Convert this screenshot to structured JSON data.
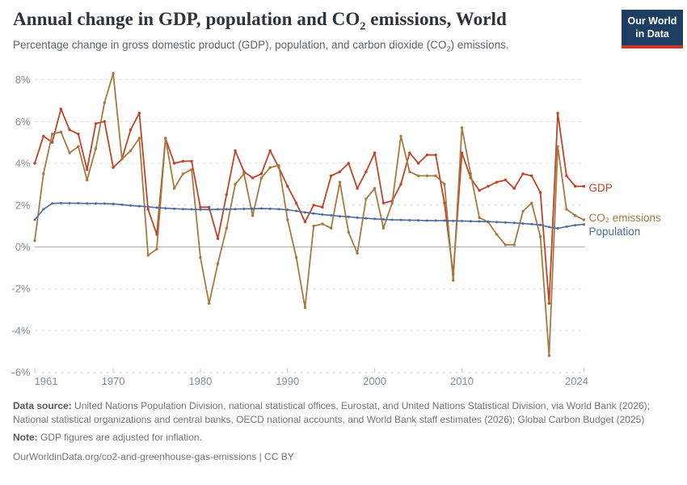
{
  "header": {
    "title": {
      "pre": "Annual change in GDP, population and CO",
      "sub": "2",
      "post": " emissions, World"
    },
    "subtitle": {
      "pre": "Percentage change in gross domestic product (GDP), population, and carbon dioxide (CO",
      "sub": "2",
      "post": ") emissions."
    },
    "logo": {
      "line1": "Our World",
      "line2": "in Data"
    }
  },
  "chart_data": {
    "type": "line",
    "title": "Annual change in GDP, population and CO₂ emissions, World",
    "x": [
      1961,
      1962,
      1963,
      1964,
      1965,
      1966,
      1967,
      1968,
      1969,
      1970,
      1971,
      1972,
      1973,
      1974,
      1975,
      1976,
      1977,
      1978,
      1979,
      1980,
      1981,
      1982,
      1983,
      1984,
      1985,
      1986,
      1987,
      1988,
      1989,
      1990,
      1991,
      1992,
      1993,
      1994,
      1995,
      1996,
      1997,
      1998,
      1999,
      2000,
      2001,
      2002,
      2003,
      2004,
      2005,
      2006,
      2007,
      2008,
      2009,
      2010,
      2011,
      2012,
      2013,
      2014,
      2015,
      2016,
      2017,
      2018,
      2019,
      2020,
      2021,
      2022,
      2023,
      2024
    ],
    "series": [
      {
        "name": "GDP",
        "label": "GDP",
        "color": "#c04327",
        "values": [
          4.0,
          5.3,
          5.0,
          6.6,
          5.6,
          5.4,
          3.7,
          5.9,
          6.0,
          3.8,
          4.2,
          5.6,
          6.4,
          1.8,
          0.6,
          5.2,
          4.0,
          4.1,
          4.1,
          1.9,
          1.9,
          0.4,
          2.5,
          4.6,
          3.6,
          3.3,
          3.5,
          4.6,
          3.8,
          2.9,
          2.1,
          1.2,
          2.0,
          1.9,
          3.4,
          3.6,
          4.0,
          2.8,
          3.6,
          4.5,
          2.1,
          2.2,
          3.0,
          4.5,
          4.0,
          4.4,
          4.4,
          2.1,
          -1.3,
          4.5,
          3.3,
          2.7,
          2.9,
          3.1,
          3.2,
          2.8,
          3.5,
          3.4,
          2.6,
          -2.7,
          6.4,
          3.4,
          2.9,
          2.9
        ]
      },
      {
        "name": "CO2 emissions",
        "label": "CO₂ emissions",
        "color": "#a5793f",
        "values": [
          0.3,
          3.5,
          5.4,
          5.5,
          4.5,
          4.8,
          3.2,
          4.7,
          6.9,
          8.3,
          4.2,
          4.6,
          5.2,
          -0.4,
          -0.1,
          5.2,
          2.8,
          3.5,
          3.7,
          -0.5,
          -2.7,
          -0.8,
          0.9,
          3.0,
          3.5,
          1.5,
          3.3,
          3.8,
          3.9,
          1.3,
          -0.5,
          -2.9,
          1.0,
          1.1,
          0.9,
          3.1,
          0.7,
          -0.3,
          2.3,
          2.8,
          0.9,
          2.1,
          5.3,
          3.6,
          3.4,
          3.4,
          3.4,
          3.0,
          -1.6,
          5.7,
          3.5,
          1.4,
          1.2,
          0.6,
          0.1,
          0.1,
          1.7,
          2.1,
          0.5,
          -5.2,
          4.8,
          1.8,
          1.5,
          1.3
        ]
      },
      {
        "name": "Population",
        "label": "Population",
        "color": "#4c6a9c",
        "values": [
          1.3,
          1.8,
          2.08,
          2.1,
          2.09,
          2.09,
          2.08,
          2.08,
          2.07,
          2.06,
          2.02,
          1.98,
          1.95,
          1.92,
          1.88,
          1.85,
          1.83,
          1.81,
          1.8,
          1.79,
          1.79,
          1.8,
          1.8,
          1.81,
          1.82,
          1.83,
          1.84,
          1.83,
          1.81,
          1.78,
          1.72,
          1.65,
          1.6,
          1.55,
          1.51,
          1.47,
          1.44,
          1.4,
          1.37,
          1.34,
          1.32,
          1.3,
          1.29,
          1.28,
          1.27,
          1.26,
          1.26,
          1.26,
          1.25,
          1.24,
          1.23,
          1.22,
          1.21,
          1.19,
          1.17,
          1.15,
          1.12,
          1.09,
          1.05,
          0.95,
          0.89,
          0.97,
          1.04,
          1.08
        ]
      }
    ],
    "ylabel": "",
    "xlabel": "",
    "ylim": [
      -6,
      8
    ],
    "xlim": [
      1961,
      2024
    ],
    "yticks": [
      {
        "value": 8,
        "label": "8%"
      },
      {
        "value": 6,
        "label": "6%"
      },
      {
        "value": 4,
        "label": "4%"
      },
      {
        "value": 2,
        "label": "2%"
      },
      {
        "value": 0,
        "label": "0%"
      },
      {
        "value": -2,
        "label": "-2%"
      },
      {
        "value": -4,
        "label": "-4%"
      },
      {
        "value": -6,
        "label": "-6%"
      }
    ],
    "xticks": [
      1961,
      1970,
      1980,
      1990,
      2000,
      2010,
      2024
    ],
    "grid": "horizontal-dashed, solid zero line",
    "legend_position": "right of line ends",
    "colors": {
      "grid": "#dcdcdc",
      "zero_line": "#a8a8a8",
      "tick_text": "#878e95"
    }
  },
  "footer": {
    "datasource_label": "Data source:",
    "datasource_text": "United Nations Population Division, national statistical offices, Eurostat, and United Nations Statistical Division, via World Bank (2026); National statistical organizations and central banks, OECD national accounts, and World Bank staff estimates (2026); Global Carbon Budget (2025)",
    "note_label": "Note:",
    "note_text": "GDP figures are adjusted for inflation.",
    "attribution": "OurWorldinData.org/co2-and-greenhouse-gas-emissions | CC BY"
  }
}
